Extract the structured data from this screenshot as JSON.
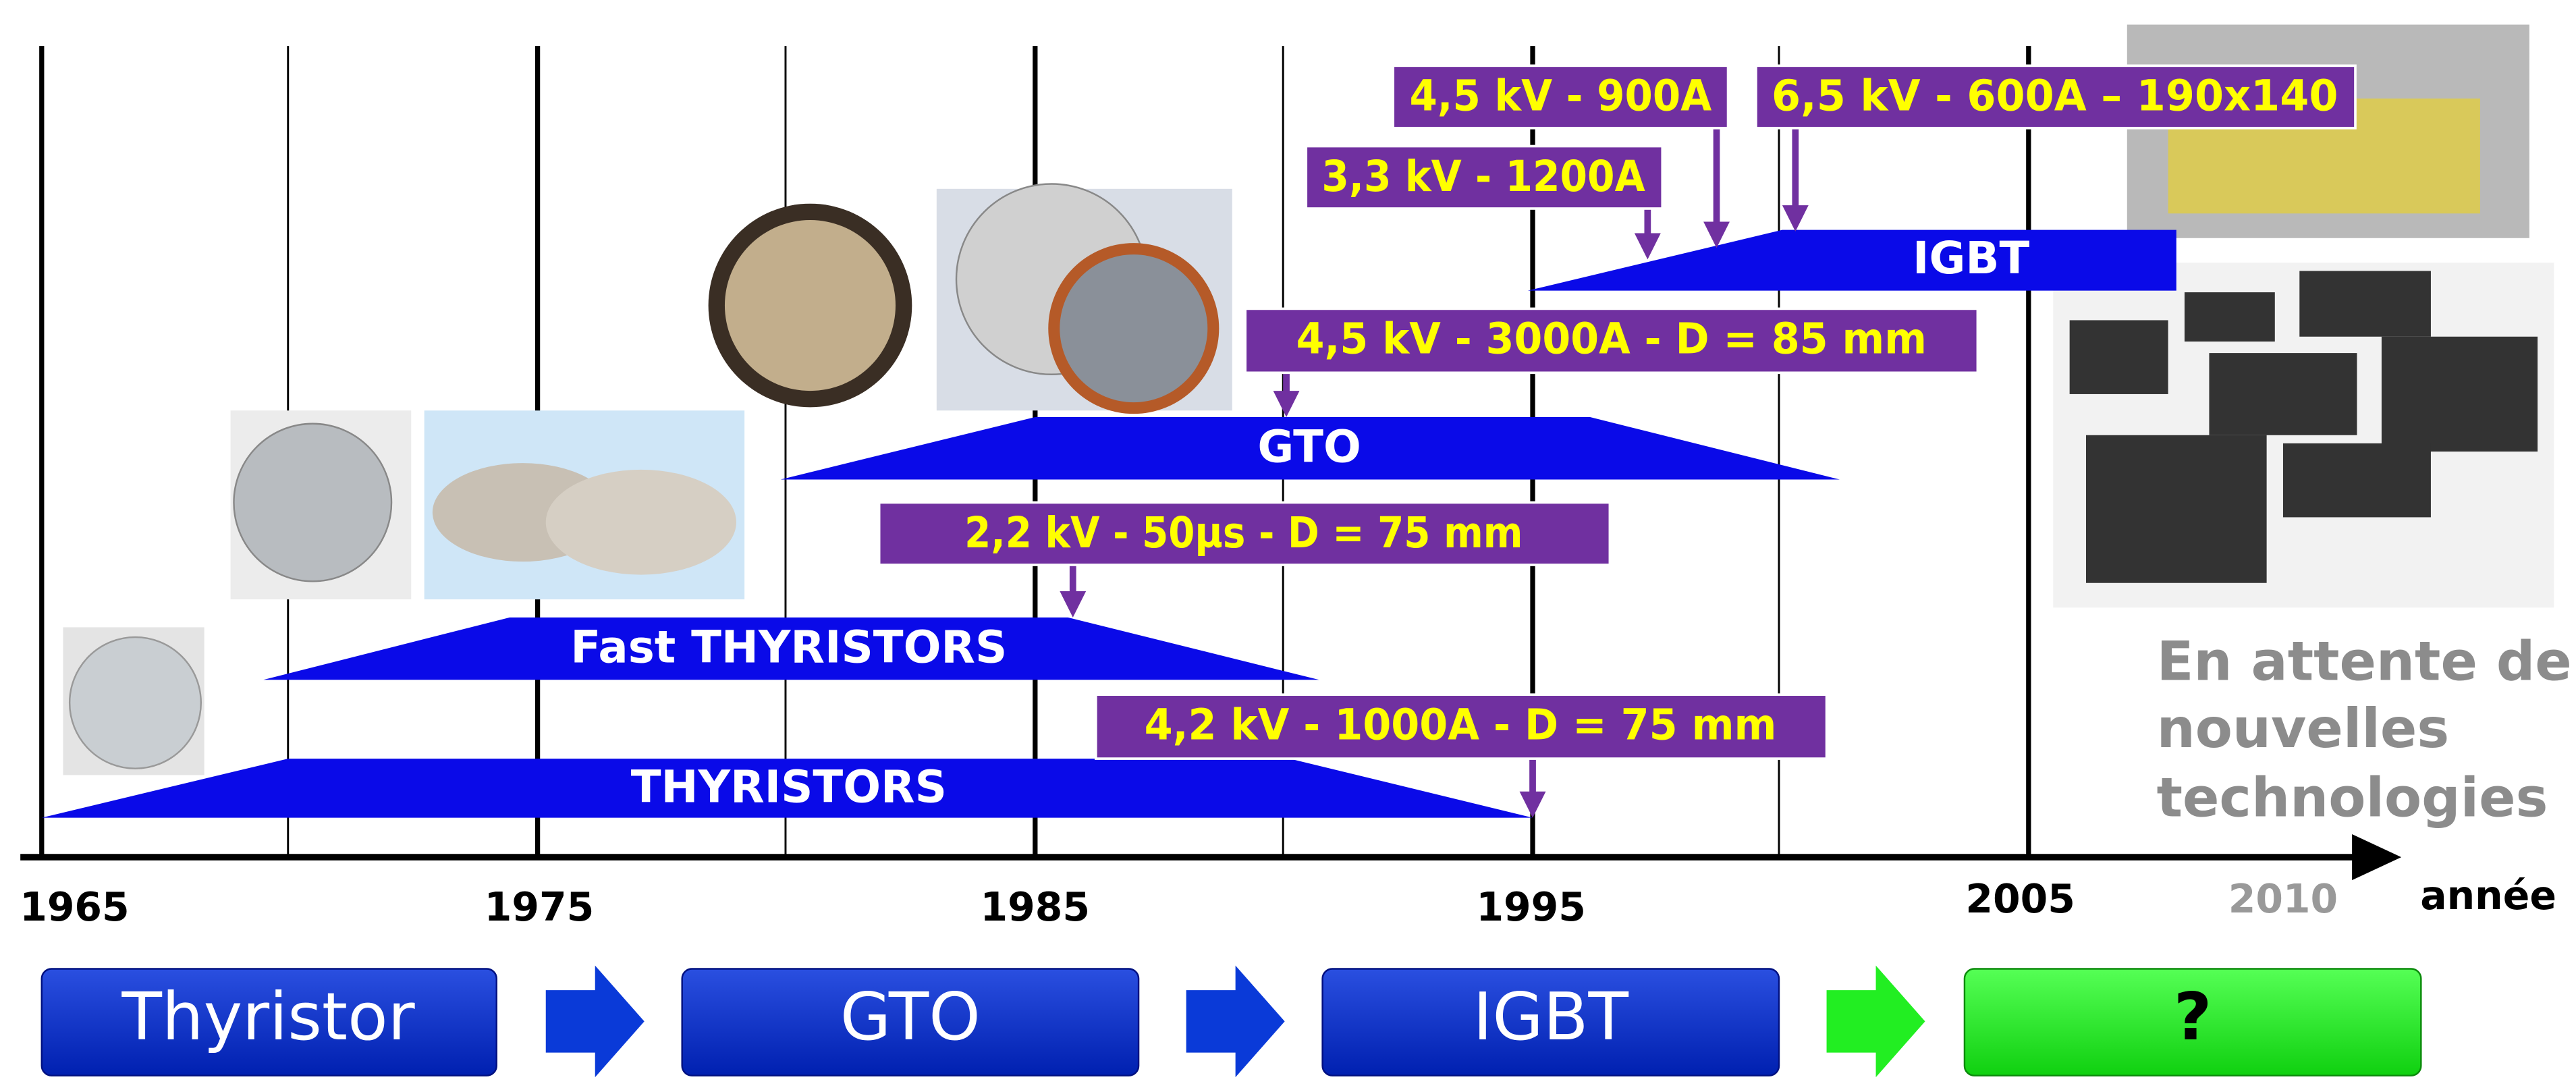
{
  "axis": {
    "years": [
      "1965",
      "1975",
      "1985",
      "1995",
      "2005"
    ],
    "future_year": "2010",
    "unit": "année"
  },
  "bands": [
    {
      "label": "THYRISTORS"
    },
    {
      "label": "Fast THYRISTORS"
    },
    {
      "label": "GTO"
    },
    {
      "label": "IGBT"
    }
  ],
  "annotations": [
    {
      "label": "4,5 kV - 900A"
    },
    {
      "label": "6,5 kV - 600A – 190x140"
    },
    {
      "label": "3,3 kV - 1200A"
    },
    {
      "label": "4,5 kV - 3000A - D = 85 mm"
    },
    {
      "label": "2,2 kV - 50µs - D = 75 mm"
    },
    {
      "label": "4,2 kV - 1000A - D = 75 mm"
    }
  ],
  "future_note": [
    "En attente de",
    "nouvelles",
    "technologies"
  ],
  "stages": [
    "Thyristor",
    "GTO",
    "IGBT",
    "?"
  ]
}
